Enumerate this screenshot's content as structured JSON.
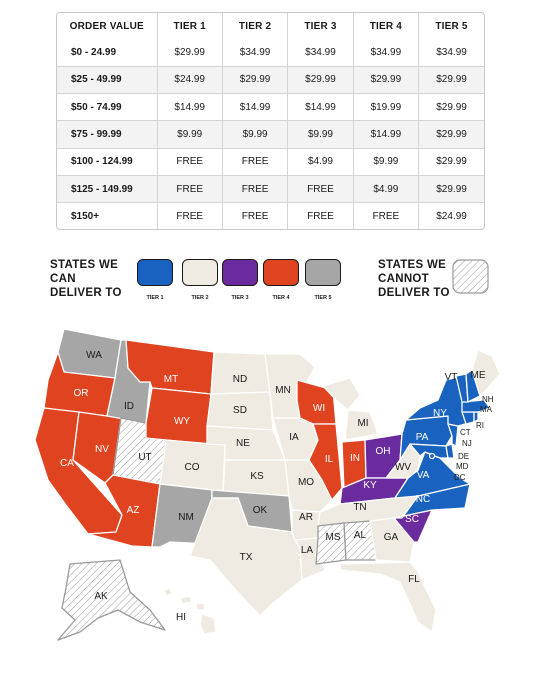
{
  "rate_table": {
    "headers": [
      "ORDER VALUE",
      "TIER 1",
      "TIER 2",
      "TIER 3",
      "TIER 4",
      "TIER 5"
    ],
    "rows": [
      [
        "$0 - 24.99",
        "$29.99",
        "$34.99",
        "$34.99",
        "$34.99",
        "$34.99"
      ],
      [
        "$25 - 49.99",
        "$24.99",
        "$29.99",
        "$29.99",
        "$29.99",
        "$29.99"
      ],
      [
        "$50 - 74.99",
        "$14.99",
        "$14.99",
        "$14.99",
        "$19.99",
        "$29.99"
      ],
      [
        "$75 - 99.99",
        "$9.99",
        "$9.99",
        "$9.99",
        "$14.99",
        "$29.99"
      ],
      [
        "$100 - 124.99",
        "FREE",
        "FREE",
        "$4.99",
        "$9.99",
        "$29.99"
      ],
      [
        "$125 - 149.99",
        "FREE",
        "FREE",
        "FREE",
        "$4.99",
        "$29.99"
      ],
      [
        "$150+",
        "FREE",
        "FREE",
        "FREE",
        "FREE",
        "$24.99"
      ]
    ]
  },
  "legend": {
    "can_deliver_title": [
      "STATES WE",
      "CAN",
      "DELIVER TO"
    ],
    "cannot_deliver_title": [
      "STATES WE",
      "CANNOT",
      "DELIVER TO"
    ],
    "tiers": [
      {
        "label": "TIER 1",
        "color": "#1a62c0"
      },
      {
        "label": "TIER 2",
        "color": "#efebe2"
      },
      {
        "label": "TIER 3",
        "color": "#6a2b9e"
      },
      {
        "label": "TIER 4",
        "color": "#e0431f"
      },
      {
        "label": "TIER 5",
        "color": "#a6a6a6"
      }
    ],
    "no_delivery_pattern": "diagonal-hatch"
  },
  "map": {
    "states": {
      "WA": {
        "label": "WA",
        "tier": 5
      },
      "OR": {
        "label": "OR",
        "tier": 4
      },
      "CA": {
        "label": "CA",
        "tier": 4
      },
      "ID": {
        "label": "ID",
        "tier": 5
      },
      "NV": {
        "label": "NV",
        "tier": 4
      },
      "UT": {
        "label": "UT",
        "tier": 0
      },
      "AZ": {
        "label": "AZ",
        "tier": 4
      },
      "MT": {
        "label": "MT",
        "tier": 4
      },
      "WY": {
        "label": "WY",
        "tier": 4
      },
      "CO": {
        "label": "CO",
        "tier": 2
      },
      "NM": {
        "label": "NM",
        "tier": 5
      },
      "ND": {
        "label": "ND",
        "tier": 2
      },
      "SD": {
        "label": "SD",
        "tier": 2
      },
      "NE": {
        "label": "NE",
        "tier": 2
      },
      "KS": {
        "label": "KS",
        "tier": 2
      },
      "OK": {
        "label": "OK",
        "tier": 5
      },
      "TX": {
        "label": "TX",
        "tier": 2
      },
      "MN": {
        "label": "MN",
        "tier": 2
      },
      "IA": {
        "label": "IA",
        "tier": 2
      },
      "MO": {
        "label": "MO",
        "tier": 2
      },
      "AR": {
        "label": "AR",
        "tier": 2
      },
      "LA": {
        "label": "LA",
        "tier": 2
      },
      "WI": {
        "label": "WI",
        "tier": 4
      },
      "IL": {
        "label": "IL",
        "tier": 4
      },
      "MI": {
        "label": "MI",
        "tier": 2
      },
      "IN": {
        "label": "IN",
        "tier": 4
      },
      "OH": {
        "label": "OH",
        "tier": 3
      },
      "KY": {
        "label": "KY",
        "tier": 3
      },
      "TN": {
        "label": "TN",
        "tier": 2
      },
      "MS": {
        "label": "MS",
        "tier": 0
      },
      "AL": {
        "label": "AL",
        "tier": 0
      },
      "GA": {
        "label": "GA",
        "tier": 2
      },
      "FL": {
        "label": "FL",
        "tier": 2
      },
      "SC": {
        "label": "SC",
        "tier": 3
      },
      "NC": {
        "label": "NC",
        "tier": 1
      },
      "VA": {
        "label": "VA",
        "tier": 1
      },
      "WV": {
        "label": "WV",
        "tier": 2
      },
      "PA": {
        "label": "PA",
        "tier": 1
      },
      "NY": {
        "label": "NY",
        "tier": 1
      },
      "VT": {
        "label": "VT",
        "tier": 1
      },
      "NH": {
        "label": "NH",
        "tier": 1
      },
      "ME": {
        "label": "ME",
        "tier": 2
      },
      "MA": {
        "label": "MA",
        "tier": 1
      },
      "RI": {
        "label": "RI",
        "tier": 1
      },
      "CT": {
        "label": "CT",
        "tier": 1
      },
      "NJ": {
        "label": "NJ",
        "tier": 1
      },
      "DE": {
        "label": "DE",
        "tier": 1
      },
      "MD": {
        "label": "MD",
        "tier": 1
      },
      "DC": {
        "label": "DC",
        "tier": 1
      },
      "AK": {
        "label": "AK",
        "tier": 0
      },
      "HI": {
        "label": "HI",
        "tier": 2
      }
    }
  }
}
